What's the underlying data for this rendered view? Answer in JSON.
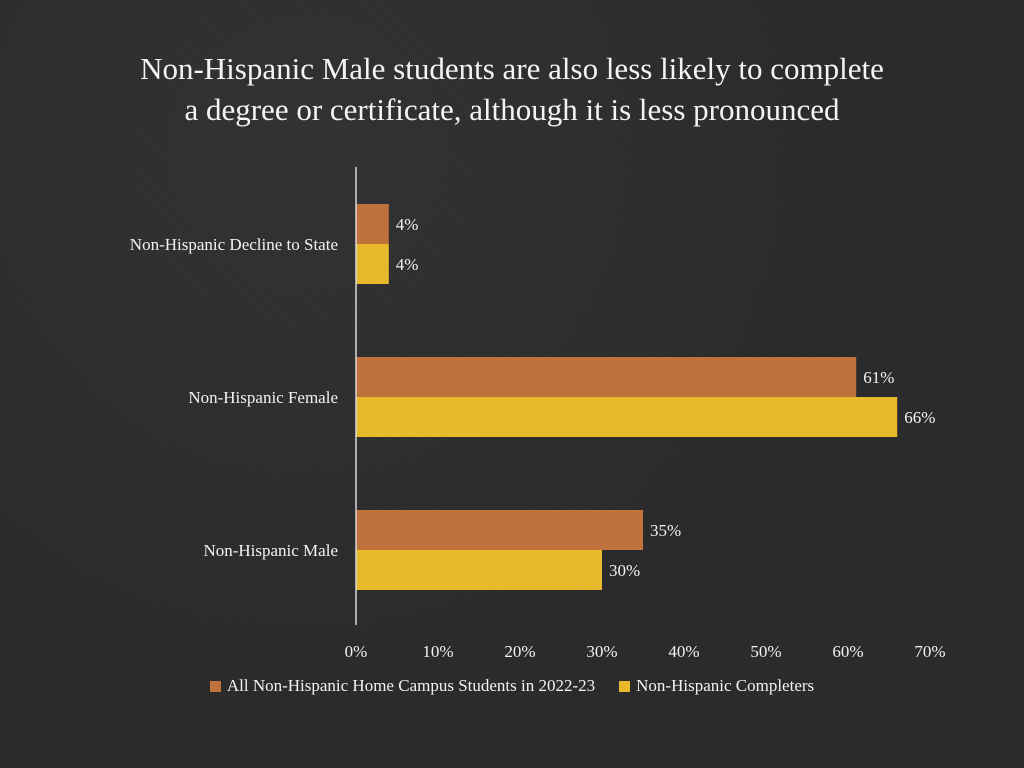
{
  "title_line1": "Non-Hispanic Male students are also less likely to complete",
  "title_line2": "a degree or certificate, although it is less pronounced",
  "colors": {
    "series1": "#c0723c",
    "series2": "#e8b92a",
    "axis": "#d9d9d9"
  },
  "chart_data": {
    "type": "bar",
    "orientation": "horizontal",
    "categories": [
      "Non-Hispanic Decline to State",
      "Non-Hispanic Female",
      "Non-Hispanic Male"
    ],
    "series": [
      {
        "name": "All Non-Hispanic Home Campus Students in 2022-23",
        "values": [
          4,
          61,
          35
        ],
        "labels": [
          "4%",
          "61%",
          "35%"
        ]
      },
      {
        "name": "Non-Hispanic Completers",
        "values": [
          4,
          66,
          30
        ],
        "labels": [
          "4%",
          "66%",
          "30%"
        ]
      }
    ],
    "xlim": [
      0,
      70
    ],
    "xticks": [
      "0%",
      "10%",
      "20%",
      "30%",
      "40%",
      "50%",
      "60%",
      "70%"
    ],
    "grid": false,
    "legend_position": "bottom"
  }
}
